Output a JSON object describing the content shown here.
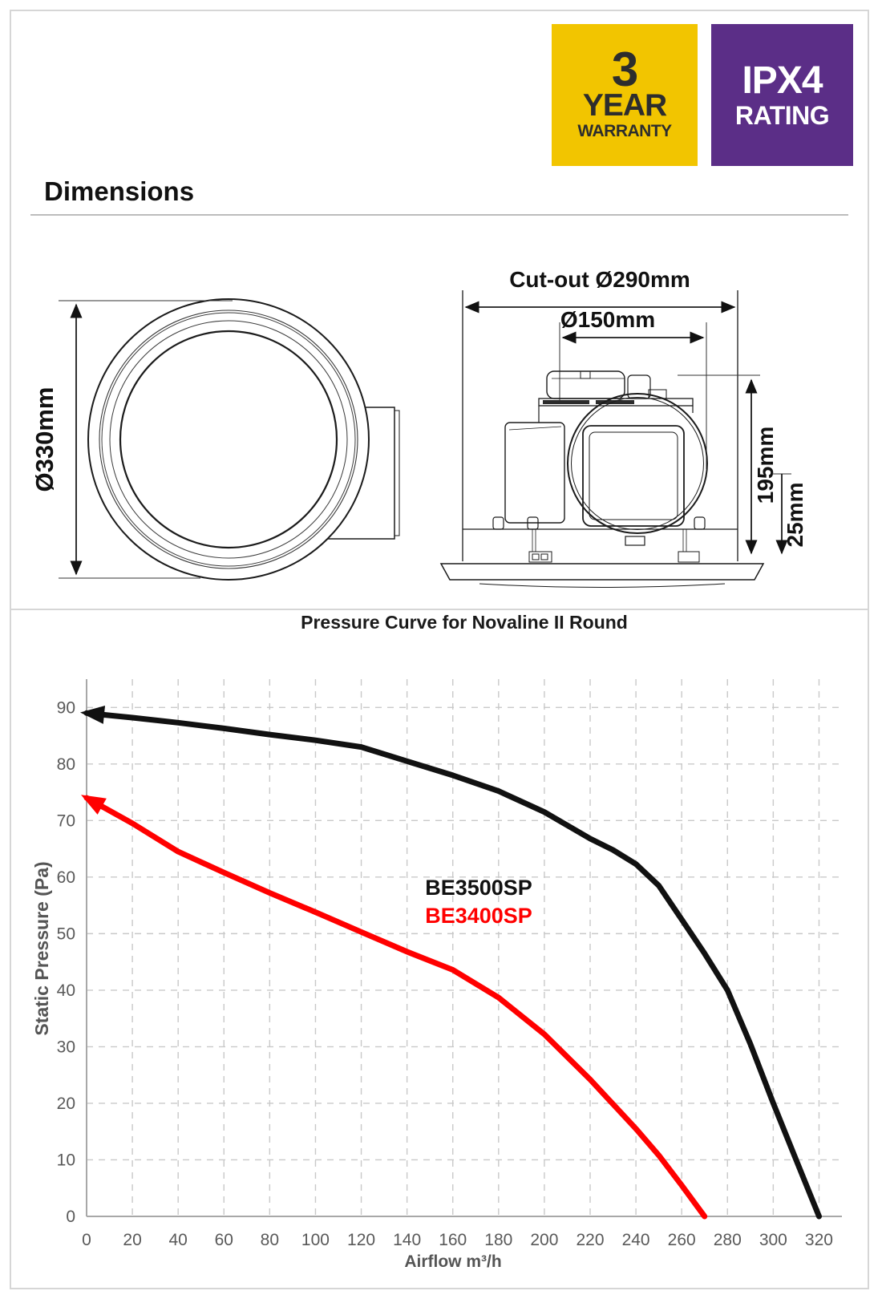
{
  "badges": {
    "warranty": {
      "line1": "3",
      "line2": "YEAR",
      "line3": "WARRANTY",
      "bg": "#F2C500",
      "text_color": "#2D2D2D"
    },
    "ipx": {
      "line1": "IPX4",
      "line2": "RATING",
      "bg": "#5B2E87",
      "text_color": "#FFFFFF"
    }
  },
  "dimensions_section": {
    "heading": "Dimensions",
    "top_view": {
      "diameter_label": "Ø330mm"
    },
    "side_view": {
      "cutout_label": "Cut-out Ø290mm",
      "duct_label": "Ø150mm",
      "height_label": "195mm",
      "fascia_label": "25mm"
    }
  },
  "chart": {
    "type": "line",
    "title": "Pressure Curve for Novaline II Round",
    "xlabel": "Airflow m³/h",
    "ylabel": "Static Pressure (Pa)",
    "xlim": [
      0,
      330
    ],
    "ylim": [
      0,
      95
    ],
    "x_ticks": [
      0,
      20,
      40,
      60,
      80,
      100,
      120,
      140,
      160,
      180,
      200,
      220,
      240,
      260,
      280,
      300,
      320
    ],
    "y_ticks": [
      0,
      10,
      20,
      30,
      40,
      50,
      60,
      70,
      80,
      90
    ],
    "grid": {
      "x_step": 20,
      "y_step": 10,
      "style": "dashed",
      "color": "#c9c9c9"
    },
    "axis_color": "#a8a8a8",
    "series": [
      {
        "name": "BE3500SP",
        "color": "#111111",
        "points": [
          [
            0,
            89
          ],
          [
            20,
            88.2
          ],
          [
            40,
            87.3
          ],
          [
            60,
            86.3
          ],
          [
            80,
            85.2
          ],
          [
            100,
            84.2
          ],
          [
            120,
            83
          ],
          [
            140,
            80.5
          ],
          [
            160,
            78
          ],
          [
            180,
            75.2
          ],
          [
            200,
            71.5
          ],
          [
            220,
            66.8
          ],
          [
            230,
            64.8
          ],
          [
            240,
            62.3
          ],
          [
            250,
            58.5
          ],
          [
            260,
            52.5
          ],
          [
            270,
            46.5
          ],
          [
            280,
            40
          ],
          [
            290,
            30.5
          ],
          [
            300,
            20
          ],
          [
            310,
            10
          ],
          [
            320,
            0
          ]
        ]
      },
      {
        "name": "BE3400SP",
        "color": "#FF0000",
        "points": [
          [
            0,
            74
          ],
          [
            20,
            69.5
          ],
          [
            40,
            64.5
          ],
          [
            60,
            60.8
          ],
          [
            80,
            57.2
          ],
          [
            100,
            53.8
          ],
          [
            120,
            50.3
          ],
          [
            140,
            46.8
          ],
          [
            160,
            43.6
          ],
          [
            180,
            38.7
          ],
          [
            200,
            32.2
          ],
          [
            220,
            24.2
          ],
          [
            240,
            15.5
          ],
          [
            250,
            10.8
          ],
          [
            260,
            5.5
          ],
          [
            270,
            0
          ]
        ]
      }
    ],
    "legend": "inline-labels"
  }
}
